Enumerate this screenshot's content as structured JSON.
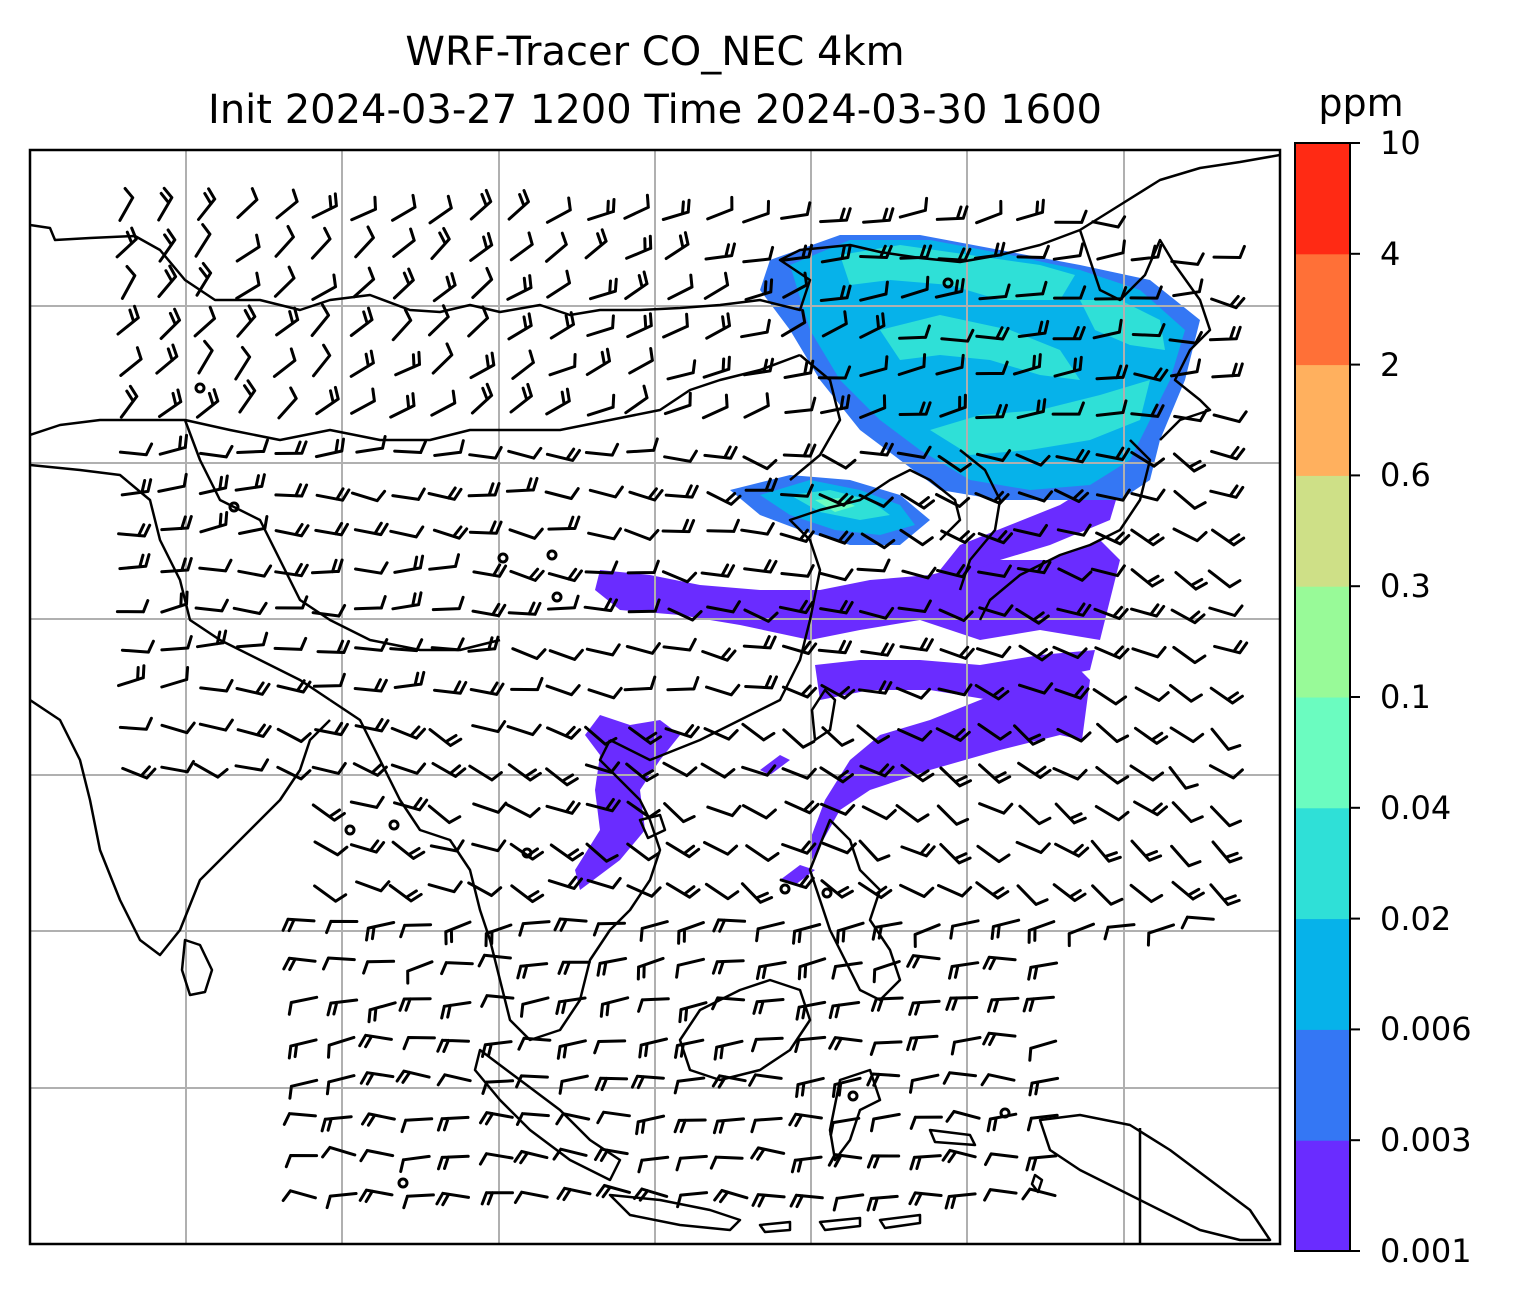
{
  "title": {
    "line1": "WRF-Tracer CO_NEC 4km",
    "line2": "Init 2024-03-27 1200 Time 2024-03-30 1600"
  },
  "colorbar": {
    "unit": "ppm",
    "ticks": [
      "0.001",
      "0.003",
      "0.006",
      "0.02",
      "0.04",
      "0.1",
      "0.3",
      "0.6",
      "2",
      "4",
      "10"
    ],
    "colors": [
      "#6a2cff",
      "#3477f4",
      "#06b2ea",
      "#2fe0d7",
      "#6bfcc0",
      "#98fa98",
      "#cee087",
      "#ffb05e",
      "#ff7037",
      "#ff2a14"
    ]
  },
  "map": {
    "field": "CO_NEC tracer concentration",
    "gridlines": true,
    "grid_color": "#b0b0b0",
    "coastline_color": "#000000",
    "overlay": "wind barbs"
  }
}
